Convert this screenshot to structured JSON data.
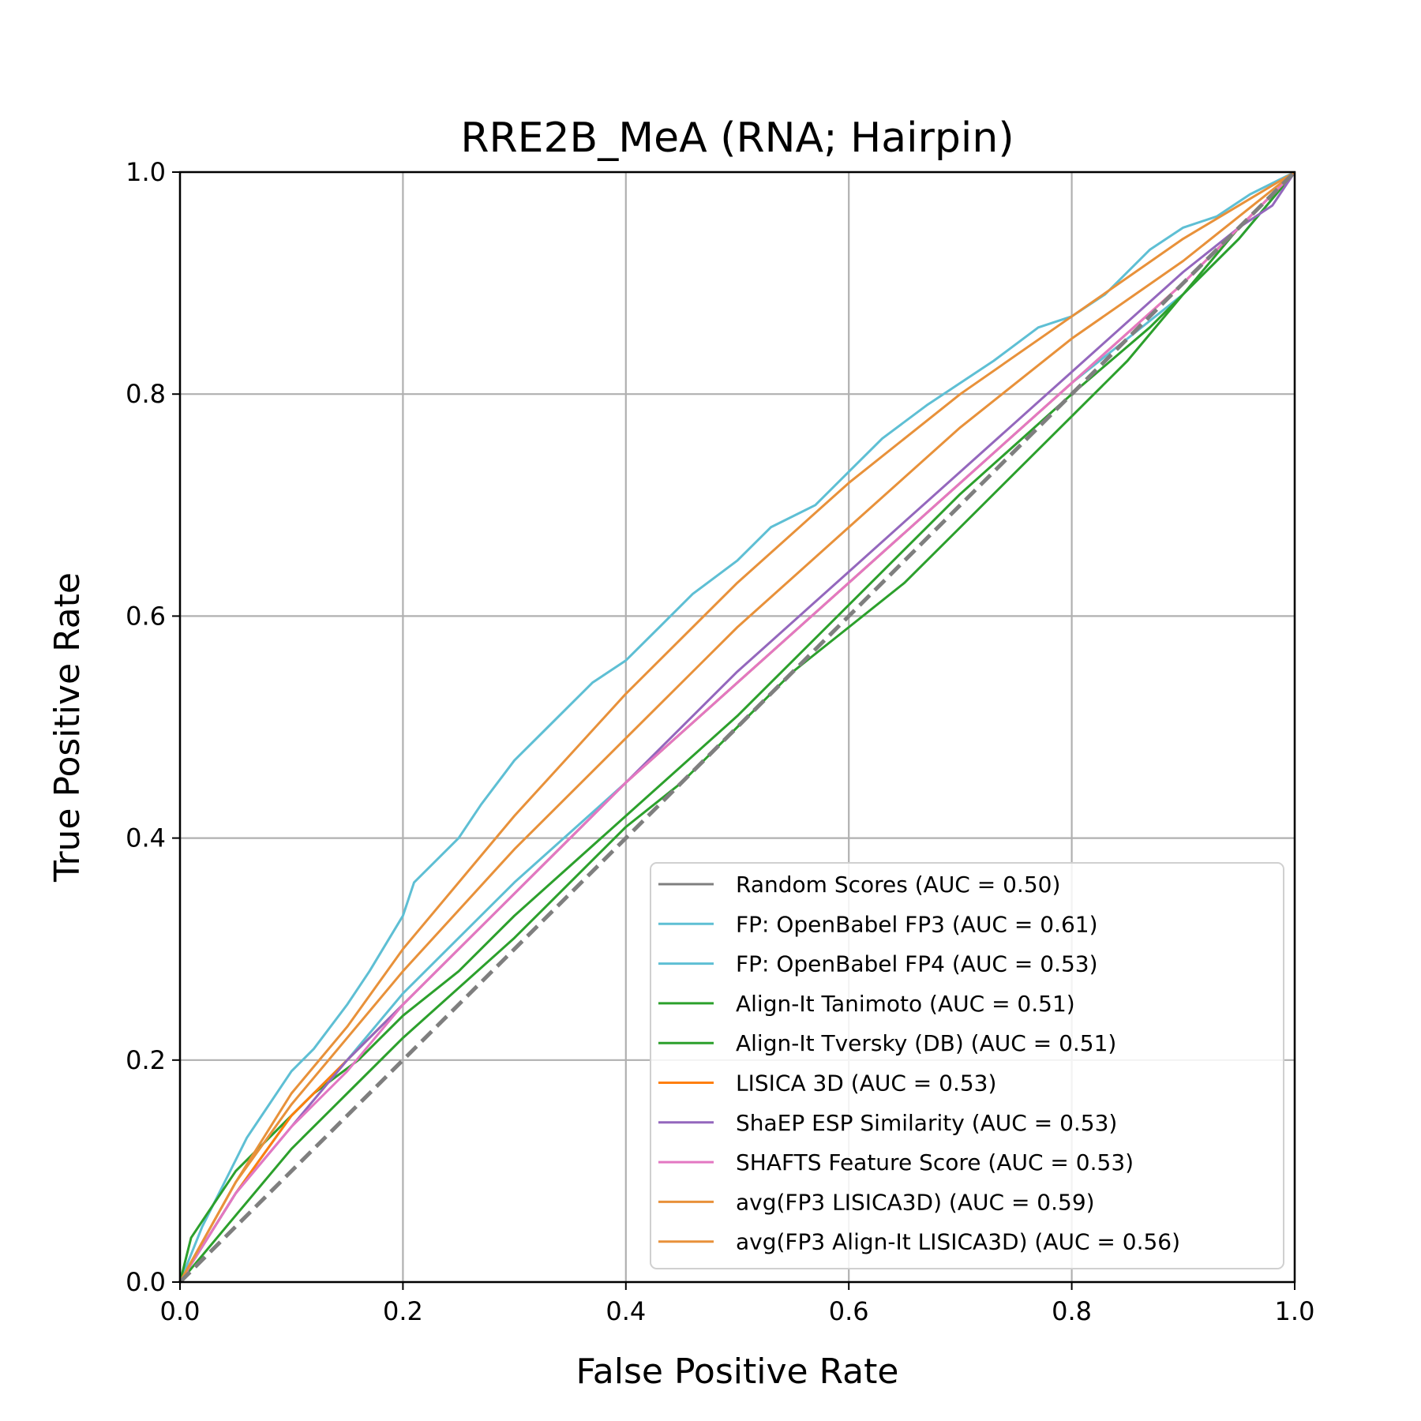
{
  "chart_data": {
    "type": "line",
    "title": "RRE2B_MeA (RNA; Hairpin)",
    "xlabel": "False Positive Rate",
    "ylabel": "True Positive Rate",
    "xlim": [
      0.0,
      1.0
    ],
    "ylim": [
      0.0,
      1.0
    ],
    "xticks": [
      "0.0",
      "0.2",
      "0.4",
      "0.6",
      "0.8",
      "1.0"
    ],
    "yticks": [
      "0.0",
      "0.2",
      "0.4",
      "0.6",
      "0.8",
      "1.0"
    ],
    "grid": true,
    "legend_position": "lower-right",
    "series": [
      {
        "name": "Random Scores (AUC = 0.50)",
        "color": "#7f7f7f",
        "dashed": true,
        "x": [
          0,
          0.1,
          0.2,
          0.3,
          0.4,
          0.5,
          0.6,
          0.7,
          0.8,
          0.9,
          1.0
        ],
        "y": [
          0,
          0.1,
          0.2,
          0.3,
          0.4,
          0.5,
          0.6,
          0.7,
          0.8,
          0.9,
          1.0
        ]
      },
      {
        "name": "FP: OpenBabel FP3 (AUC = 0.61)",
        "color": "#5ebfd4",
        "dashed": false,
        "x": [
          0,
          0.02,
          0.04,
          0.06,
          0.08,
          0.1,
          0.12,
          0.15,
          0.17,
          0.2,
          0.21,
          0.25,
          0.27,
          0.3,
          0.33,
          0.37,
          0.4,
          0.43,
          0.46,
          0.5,
          0.53,
          0.57,
          0.6,
          0.63,
          0.67,
          0.7,
          0.73,
          0.77,
          0.8,
          0.83,
          0.87,
          0.9,
          0.93,
          0.96,
          1.0
        ],
        "y": [
          0,
          0.05,
          0.09,
          0.13,
          0.16,
          0.19,
          0.21,
          0.25,
          0.28,
          0.33,
          0.36,
          0.4,
          0.43,
          0.47,
          0.5,
          0.54,
          0.56,
          0.59,
          0.62,
          0.65,
          0.68,
          0.7,
          0.73,
          0.76,
          0.79,
          0.81,
          0.83,
          0.86,
          0.87,
          0.89,
          0.93,
          0.95,
          0.96,
          0.98,
          1.0
        ]
      },
      {
        "name": "FP: OpenBabel FP4 (AUC = 0.53)",
        "color": "#5ebfd4",
        "dashed": false,
        "x": [
          0,
          0.05,
          0.1,
          0.15,
          0.2,
          0.3,
          0.4,
          0.5,
          0.6,
          0.7,
          0.8,
          0.9,
          0.95,
          1.0
        ],
        "y": [
          0,
          0.08,
          0.15,
          0.2,
          0.26,
          0.36,
          0.45,
          0.54,
          0.63,
          0.72,
          0.81,
          0.89,
          0.94,
          1.0
        ]
      },
      {
        "name": "Align-It Tanimoto (AUC = 0.51)",
        "color": "#2ca02c",
        "dashed": false,
        "x": [
          0,
          0.05,
          0.1,
          0.15,
          0.2,
          0.3,
          0.4,
          0.45,
          0.5,
          0.55,
          0.6,
          0.65,
          0.7,
          0.75,
          0.8,
          0.85,
          0.9,
          0.95,
          1.0
        ],
        "y": [
          0,
          0.06,
          0.12,
          0.17,
          0.22,
          0.31,
          0.41,
          0.45,
          0.5,
          0.55,
          0.59,
          0.63,
          0.68,
          0.73,
          0.78,
          0.83,
          0.89,
          0.95,
          1.0
        ]
      },
      {
        "name": "Align-It Tversky (DB) (AUC = 0.51)",
        "color": "#2ca02c",
        "dashed": false,
        "x": [
          0,
          0.01,
          0.03,
          0.05,
          0.08,
          0.12,
          0.16,
          0.2,
          0.25,
          0.3,
          0.4,
          0.5,
          0.6,
          0.7,
          0.8,
          0.87,
          0.9,
          0.95,
          1.0
        ],
        "y": [
          0,
          0.04,
          0.07,
          0.1,
          0.13,
          0.17,
          0.2,
          0.24,
          0.28,
          0.33,
          0.42,
          0.51,
          0.61,
          0.71,
          0.8,
          0.86,
          0.89,
          0.94,
          1.0
        ]
      },
      {
        "name": "LISICA 3D (AUC = 0.53)",
        "color": "#ff7f0e",
        "dashed": false,
        "x": [
          0,
          0.05,
          0.1,
          0.15,
          0.2,
          0.3,
          0.4,
          0.5,
          0.6,
          0.7,
          0.8,
          0.9,
          1.0
        ],
        "y": [
          0,
          0.08,
          0.15,
          0.2,
          0.25,
          0.35,
          0.45,
          0.54,
          0.63,
          0.72,
          0.81,
          0.9,
          1.0
        ]
      },
      {
        "name": "ShaEP ESP Similarity (AUC = 0.53)",
        "color": "#9467bd",
        "dashed": false,
        "x": [
          0,
          0.05,
          0.1,
          0.15,
          0.2,
          0.3,
          0.4,
          0.5,
          0.6,
          0.7,
          0.8,
          0.9,
          0.95,
          0.98,
          1.0
        ],
        "y": [
          0,
          0.08,
          0.14,
          0.2,
          0.25,
          0.35,
          0.45,
          0.55,
          0.64,
          0.73,
          0.82,
          0.91,
          0.95,
          0.97,
          1.0
        ]
      },
      {
        "name": "SHAFTS Feature Score (AUC = 0.53)",
        "color": "#e377c2",
        "dashed": false,
        "x": [
          0,
          0.05,
          0.1,
          0.15,
          0.2,
          0.3,
          0.4,
          0.5,
          0.6,
          0.7,
          0.8,
          0.9,
          1.0
        ],
        "y": [
          0,
          0.08,
          0.14,
          0.19,
          0.25,
          0.35,
          0.45,
          0.54,
          0.63,
          0.72,
          0.81,
          0.9,
          1.0
        ]
      },
      {
        "name": "avg(FP3 LISICA3D) (AUC = 0.59)",
        "color": "#e8913a",
        "dashed": false,
        "x": [
          0,
          0.05,
          0.1,
          0.15,
          0.2,
          0.3,
          0.4,
          0.5,
          0.6,
          0.7,
          0.8,
          0.9,
          1.0
        ],
        "y": [
          0,
          0.09,
          0.17,
          0.23,
          0.3,
          0.42,
          0.53,
          0.63,
          0.72,
          0.8,
          0.87,
          0.94,
          1.0
        ]
      },
      {
        "name": "avg(FP3 Align-It LISICA3D) (AUC = 0.56)",
        "color": "#e8913a",
        "dashed": false,
        "x": [
          0,
          0.05,
          0.1,
          0.15,
          0.2,
          0.3,
          0.4,
          0.5,
          0.6,
          0.7,
          0.8,
          0.9,
          1.0
        ],
        "y": [
          0,
          0.09,
          0.16,
          0.22,
          0.28,
          0.39,
          0.49,
          0.59,
          0.68,
          0.77,
          0.85,
          0.92,
          1.0
        ]
      }
    ]
  }
}
